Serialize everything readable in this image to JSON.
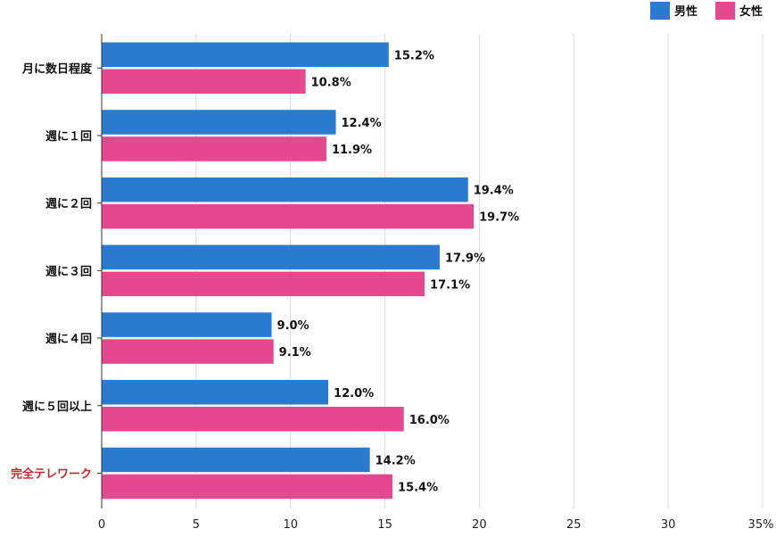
{
  "chart_data": {
    "type": "bar",
    "orientation": "horizontal",
    "categories": [
      "月に数日程度",
      "週に１回",
      "週に２回",
      "週に３回",
      "週に４回",
      "週に５回以上",
      "完全テレワーク"
    ],
    "highlight_category_color": "#c0282d",
    "series": [
      {
        "name": "男性",
        "color": "#2a7acf",
        "values": [
          15.2,
          12.4,
          19.4,
          17.9,
          9.0,
          12.0,
          14.2
        ],
        "labels": [
          "15.2%",
          "12.4%",
          "19.4%",
          "17.9%",
          "9.0%",
          "12.0%",
          "14.2%"
        ]
      },
      {
        "name": "女性",
        "color": "#e64890",
        "values": [
          10.8,
          11.9,
          19.7,
          17.1,
          9.1,
          16.0,
          15.4
        ],
        "labels": [
          "10.8%",
          "11.9%",
          "19.7%",
          "17.1%",
          "9.1%",
          "16.0%",
          "15.4%"
        ]
      }
    ],
    "xlim": [
      0,
      35
    ],
    "x_ticks": [
      "0",
      "5",
      "10",
      "15",
      "20",
      "25",
      "30",
      "35%"
    ],
    "grid": true,
    "legend_position": "top-right"
  }
}
